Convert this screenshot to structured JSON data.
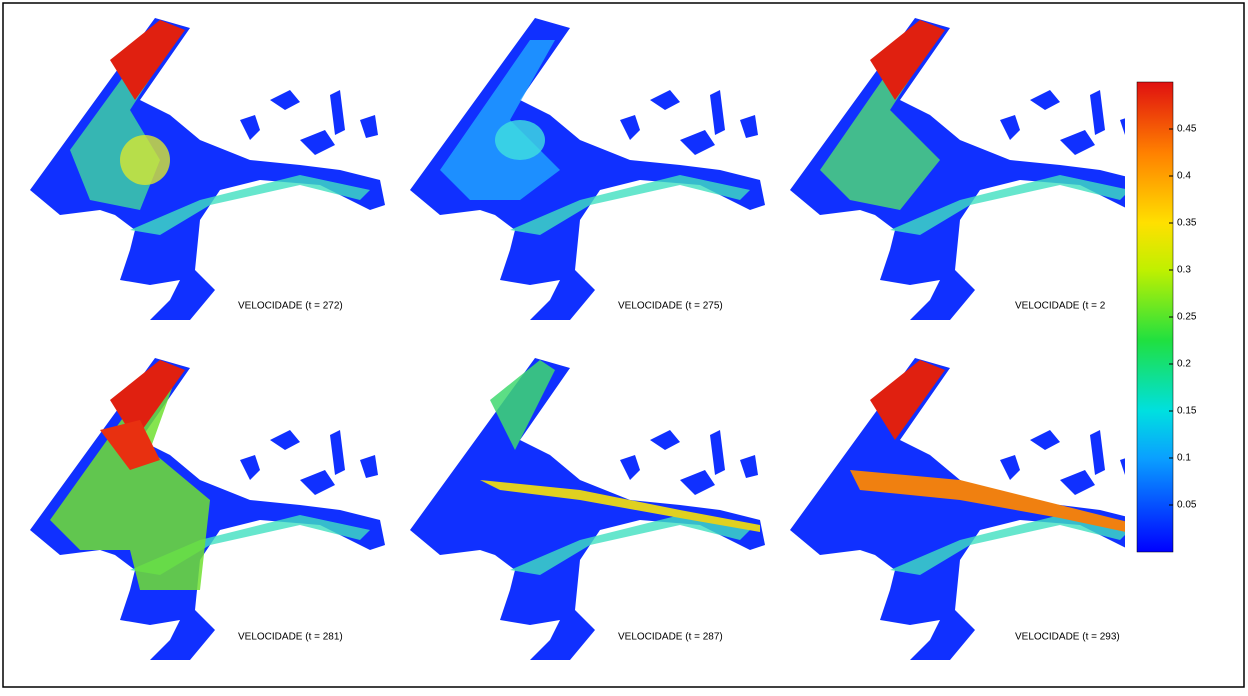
{
  "panels": [
    {
      "label": "VELOCIDADE (t = 272)"
    },
    {
      "label": "VELOCIDADE (t = 275)"
    },
    {
      "label": "VELOCIDADE (t = 2"
    },
    {
      "label": "VELOCIDADE (t = 281)"
    },
    {
      "label": "VELOCIDADE (t = 287)"
    },
    {
      "label": "VELOCIDADE (t = 293)"
    }
  ],
  "colorbar": {
    "lim": [
      0,
      0.5
    ],
    "ticks": [
      0.05,
      0.1,
      0.15,
      0.2,
      0.25,
      0.3,
      0.35,
      0.4,
      0.45
    ]
  }
}
